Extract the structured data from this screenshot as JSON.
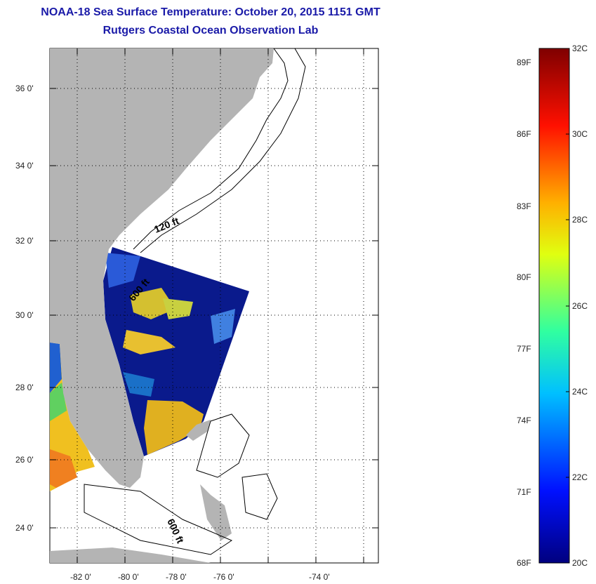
{
  "header": {
    "title": "NOAA-18 Sea Surface Temperature:  October 20, 2015 1151 GMT",
    "subtitle": "Rutgers Coastal Ocean Observation Lab"
  },
  "map": {
    "lat_labels": [
      "36 0'",
      "34 0'",
      "32 0'",
      "30 0'",
      "28 0'",
      "26 0'",
      "24 0'"
    ],
    "lon_labels": [
      "-82 0'",
      "-80 0'",
      "-78 0'",
      "-76 0'",
      "-74 0'"
    ],
    "contour_labels": [
      "120 ft",
      "600 ft",
      "600 ft"
    ]
  },
  "colorbar": {
    "fahrenheit_labels": [
      "89F",
      "86F",
      "83F",
      "80F",
      "77F",
      "74F",
      "71F",
      "68F"
    ],
    "celsius_labels": [
      "32C",
      "30C",
      "28C",
      "26C",
      "24C",
      "22C",
      "20C"
    ],
    "min_c": 20,
    "max_c": 32
  },
  "colors": {
    "land": "#b4b4b4",
    "water_cold": "#0a1a8c",
    "title": "#1a1aa8"
  }
}
